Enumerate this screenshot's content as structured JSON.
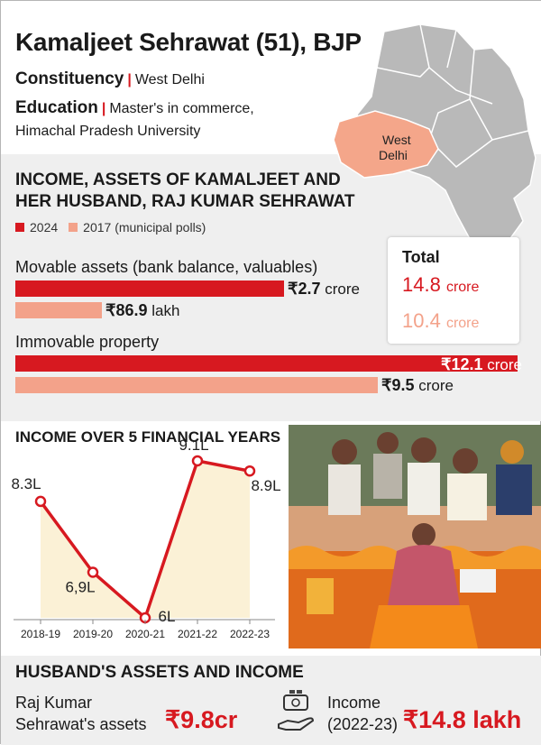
{
  "header": {
    "name": "Kamaljeet Sehrawat (51), BJP",
    "constituency_label": "Constituency",
    "constituency_value": "West Delhi",
    "education_label": "Education",
    "education_value_line1": "Master's in commerce,",
    "education_value_line2": "Himachal Pradesh University",
    "map_label_line1": "West",
    "map_label_line2": "Delhi"
  },
  "assets": {
    "title_line1": "INCOME, ASSETS OF KAMALJEET AND",
    "title_line2": "HER HUSBAND, RAJ KUMAR SEHRAWAT",
    "legend": [
      {
        "label": "2024",
        "color": "#d71920"
      },
      {
        "label": "2017 (municipal polls)",
        "color": "#f3a28a"
      }
    ],
    "movable_label": "Movable assets (bank balance, valuables)",
    "movable_2024": "₹2.7",
    "movable_2024_unit": "crore",
    "movable_2017": "₹86.9",
    "movable_2017_unit": "lakh",
    "immovable_label": "Immovable property",
    "immovable_2024": "₹12.1",
    "immovable_2024_unit": "crore",
    "immovable_2017": "₹9.5",
    "immovable_2017_unit": "crore",
    "total_label": "Total",
    "total_2024": "14.8",
    "total_2024_unit": "crore",
    "total_2017": "10.4",
    "total_2017_unit": "crore"
  },
  "income": {
    "title": "INCOME OVER 5 FINANCIAL YEARS"
  },
  "husband": {
    "title": "HUSBAND'S ASSETS AND INCOME",
    "assets_line1": "Raj Kumar",
    "assets_line2": "Sehrawat's assets",
    "assets_value": "₹9.8cr",
    "income_line1": "Income",
    "income_line2": "(2022-23)",
    "income_value": "₹14.8 lakh"
  },
  "chart_data": [
    {
      "type": "bar",
      "orientation": "horizontal",
      "categories": [
        "Movable assets (bank balance, valuables)",
        "Immovable property"
      ],
      "series": [
        {
          "name": "2024",
          "values": [
            2.7,
            12.1
          ],
          "unit": "crore",
          "color": "#d71920"
        },
        {
          "name": "2017 (municipal polls)",
          "values": [
            0.869,
            9.5
          ],
          "unit": "crore",
          "color": "#f3a28a"
        }
      ]
    },
    {
      "type": "line",
      "title": "INCOME OVER 5 FINANCIAL YEARS",
      "categories": [
        "2018-19",
        "2019-20",
        "2020-21",
        "2021-22",
        "2022-23"
      ],
      "values": [
        8.3,
        6.9,
        6,
        9.1,
        8.9
      ],
      "labels": [
        "8.3L",
        "6,9L",
        "6L",
        "9.1L",
        "8.9L"
      ],
      "ylim": [
        6,
        9.1
      ],
      "color": "#d71920",
      "fill": "#fbf1d6"
    }
  ]
}
